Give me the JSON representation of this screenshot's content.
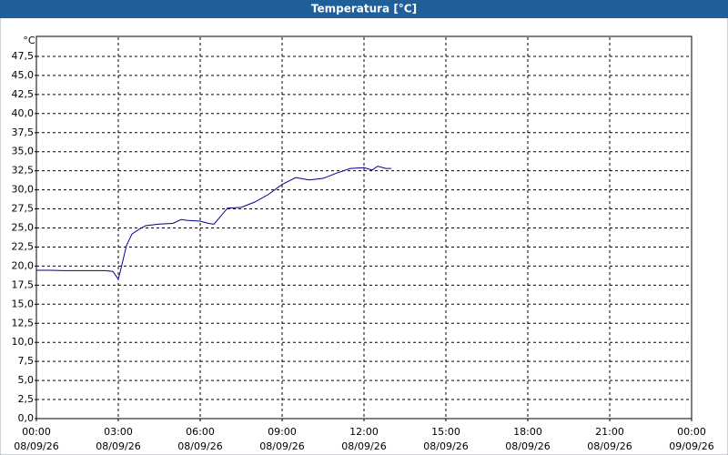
{
  "chart_data": {
    "type": "line",
    "title": "Temperatura [°C]",
    "y_label": "°C",
    "x": [
      0,
      0.5,
      1,
      1.5,
      2,
      2.5,
      2.8,
      3.0,
      3.1,
      3.3,
      3.5,
      3.75,
      4,
      4.5,
      5,
      5.3,
      5.5,
      6,
      6.3,
      6.5,
      6.6,
      7,
      7.5,
      8,
      8.5,
      9,
      9.5,
      10,
      10.5,
      11,
      11.5,
      12,
      12.3,
      12.5,
      12.8,
      13
    ],
    "series": [
      {
        "name": "Temperatura",
        "color": "#00008b",
        "values": [
          19.45,
          19.45,
          19.4,
          19.4,
          19.4,
          19.4,
          19.3,
          18.3,
          19.7,
          22.7,
          24.2,
          24.8,
          25.3,
          25.5,
          25.6,
          26.1,
          26.0,
          25.9,
          25.6,
          25.5,
          25.9,
          27.6,
          27.7,
          28.4,
          29.4,
          30.7,
          31.6,
          31.3,
          31.5,
          32.2,
          32.8,
          32.9,
          32.6,
          33.1,
          32.8,
          32.8
        ]
      }
    ],
    "xlim": [
      0,
      24
    ],
    "xticks": [
      {
        "value": 0,
        "label": "00:00"
      },
      {
        "value": 3,
        "label": "03:00"
      },
      {
        "value": 6,
        "label": "06:00"
      },
      {
        "value": 9,
        "label": "09:00"
      },
      {
        "value": 12,
        "label": "12:00"
      },
      {
        "value": 15,
        "label": "15:00"
      },
      {
        "value": 18,
        "label": "18:00"
      },
      {
        "value": 21,
        "label": "21:00"
      },
      {
        "value": 24,
        "label": "00:00"
      }
    ],
    "xtick_dates": [
      "08/09/26",
      "08/09/26",
      "08/09/26",
      "08/09/26",
      "08/09/26",
      "08/09/26",
      "08/09/26",
      "08/09/26",
      "09/09/26"
    ],
    "ylim": [
      0,
      50
    ],
    "yticks": [
      {
        "value": 0,
        "label": "0,0"
      },
      {
        "value": 2.5,
        "label": "2,5"
      },
      {
        "value": 5,
        "label": "5,0"
      },
      {
        "value": 7.5,
        "label": "7,5"
      },
      {
        "value": 10,
        "label": "10,0"
      },
      {
        "value": 12.5,
        "label": "12,5"
      },
      {
        "value": 15,
        "label": "15,0"
      },
      {
        "value": 17.5,
        "label": "17,5"
      },
      {
        "value": 20,
        "label": "20,0"
      },
      {
        "value": 22.5,
        "label": "22,5"
      },
      {
        "value": 25,
        "label": "25,0"
      },
      {
        "value": 27.5,
        "label": "27,5"
      },
      {
        "value": 30,
        "label": "30,0"
      },
      {
        "value": 32.5,
        "label": "32,5"
      },
      {
        "value": 35,
        "label": "35,0"
      },
      {
        "value": 37.5,
        "label": "37,5"
      },
      {
        "value": 40,
        "label": "40,0"
      },
      {
        "value": 42.5,
        "label": "42,5"
      },
      {
        "value": 45,
        "label": "45,0"
      },
      {
        "value": 47.5,
        "label": "47,5"
      }
    ],
    "grid": true
  }
}
